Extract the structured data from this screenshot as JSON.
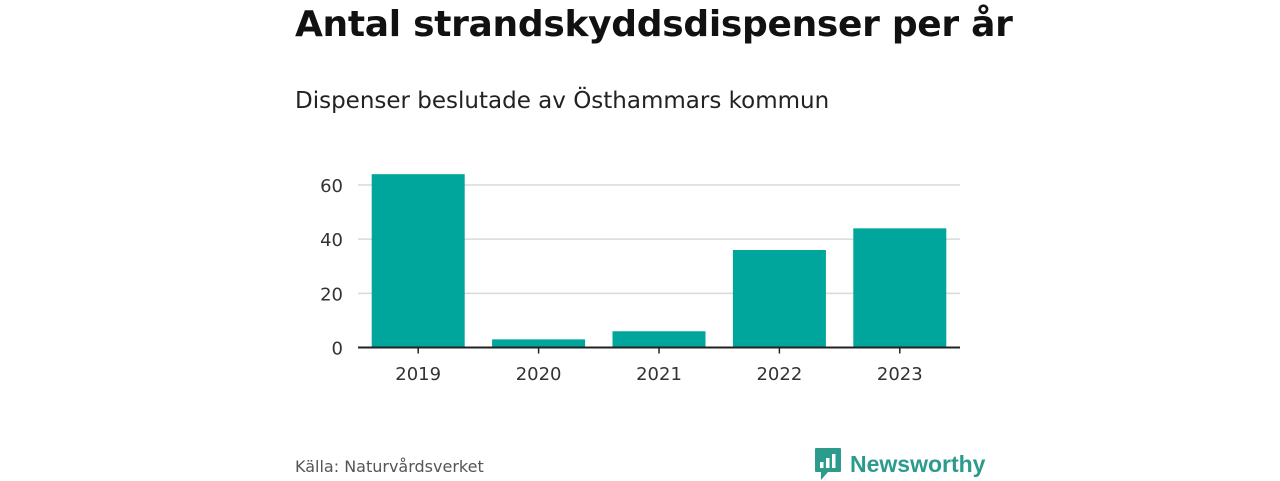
{
  "title": "Antal strandskyddsdispenser per år",
  "subtitle": "Dispenser beslutade av Östhammars kommun",
  "source": "Källa: Naturvårdsverket",
  "brand": {
    "name": "Newsworthy",
    "icon": "newsworthy-logo-icon",
    "color": "#2b9b8c"
  },
  "chart_data": {
    "type": "bar",
    "categories": [
      "2019",
      "2020",
      "2021",
      "2022",
      "2023"
    ],
    "values": [
      64,
      3,
      6,
      36,
      44
    ],
    "title": "Antal strandskyddsdispenser per år",
    "subtitle": "Dispenser beslutade av Östhammars kommun",
    "xlabel": "",
    "ylabel": "",
    "ylim": [
      0,
      60
    ],
    "yticks": [
      0,
      20,
      40,
      60
    ],
    "grid": true,
    "legend": "none",
    "bar_color": "#00a59b",
    "grid_color": "#d9d9d9",
    "axis_color": "#222222"
  }
}
